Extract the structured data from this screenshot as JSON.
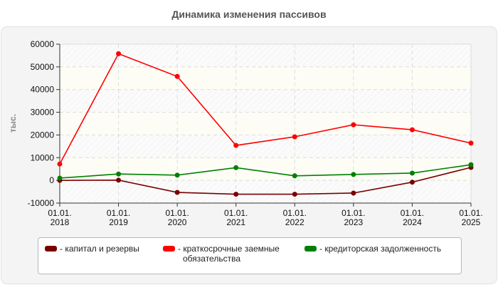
{
  "title": "Динамика изменения пассивов",
  "chart_data": {
    "type": "line",
    "title": "Динамика изменения пассивов",
    "xlabel": "",
    "ylabel": "тыс.",
    "ylim": [
      -10000,
      60000
    ],
    "yticks": [
      60000,
      50000,
      40000,
      30000,
      20000,
      10000,
      0,
      -10000
    ],
    "grid": true,
    "legend_position": "bottom",
    "categories": [
      "01.01.\n2018",
      "01.01.\n2019",
      "01.01.\n2020",
      "01.01.\n2021",
      "01.01.\n2022",
      "01.01.\n2023",
      "01.01.\n2024",
      "01.01.\n2025"
    ],
    "category_lines": [
      [
        "01.01.",
        "2018"
      ],
      [
        "01.01.",
        "2019"
      ],
      [
        "01.01.",
        "2020"
      ],
      [
        "01.01.",
        "2021"
      ],
      [
        "01.01.",
        "2022"
      ],
      [
        "01.01.",
        "2023"
      ],
      [
        "01.01.",
        "2024"
      ],
      [
        "01.01.",
        "2025"
      ]
    ],
    "series": [
      {
        "name": "капитал и резервы",
        "color": "#7a0000",
        "values": [
          0,
          100,
          -5300,
          -6100,
          -6100,
          -5600,
          -800,
          5700
        ]
      },
      {
        "name": "краткосрочные заемные обязательства",
        "color": "#ff0000",
        "values": [
          7200,
          55800,
          45800,
          15400,
          19200,
          24500,
          22300,
          16400
        ]
      },
      {
        "name": "кредиторская задолженность",
        "color": "#008000",
        "values": [
          1000,
          2800,
          2300,
          5600,
          2000,
          2600,
          3200,
          6900
        ]
      }
    ]
  },
  "legend": {
    "items": [
      {
        "label_line1": "- капитал и резервы",
        "label_line2": "",
        "color": "#7a0000"
      },
      {
        "label_line1": "- краткосрочные заемные",
        "label_line2": "обязательства",
        "color": "#ff0000"
      },
      {
        "label_line1": "- кредиторская задолженность",
        "label_line2": "",
        "color": "#008000"
      }
    ]
  }
}
